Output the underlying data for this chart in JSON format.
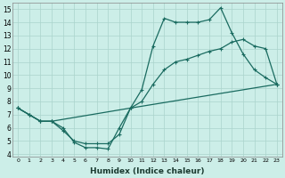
{
  "xlabel": "Humidex (Indice chaleur)",
  "bg_color": "#cceee8",
  "grid_color": "#aad4cc",
  "line_color": "#1a6b60",
  "xlim": [
    -0.5,
    23.5
  ],
  "ylim": [
    3.8,
    15.5
  ],
  "xticks": [
    0,
    1,
    2,
    3,
    4,
    5,
    6,
    7,
    8,
    9,
    10,
    11,
    12,
    13,
    14,
    15,
    16,
    17,
    18,
    19,
    20,
    21,
    22,
    23
  ],
  "yticks": [
    4,
    5,
    6,
    7,
    8,
    9,
    10,
    11,
    12,
    13,
    14,
    15
  ],
  "s1_x": [
    0,
    1,
    2,
    3,
    4,
    5,
    6,
    7,
    8,
    9,
    10,
    11,
    12,
    13,
    14,
    15,
    16,
    17,
    18,
    19,
    20,
    21,
    22,
    23
  ],
  "s1_y": [
    7.5,
    7.0,
    6.5,
    6.5,
    6.0,
    4.9,
    4.5,
    4.5,
    4.4,
    6.0,
    7.5,
    8.9,
    12.2,
    14.3,
    14.0,
    14.0,
    14.0,
    14.2,
    15.1,
    13.2,
    11.6,
    10.4,
    9.8,
    9.3
  ],
  "s2_x": [
    0,
    1,
    2,
    3,
    4,
    5,
    6,
    7,
    8,
    9,
    10,
    11,
    12,
    13,
    14,
    15,
    16,
    17,
    18,
    19,
    20,
    21,
    22,
    23
  ],
  "s2_y": [
    7.5,
    7.0,
    6.5,
    6.5,
    5.8,
    5.0,
    4.8,
    4.8,
    4.8,
    5.5,
    7.5,
    8.0,
    9.3,
    10.4,
    11.0,
    11.2,
    11.5,
    11.8,
    12.0,
    12.5,
    12.7,
    12.2,
    12.0,
    9.3
  ],
  "s3_x": [
    0,
    1,
    2,
    3,
    10,
    23
  ],
  "s3_y": [
    7.5,
    7.0,
    6.5,
    6.5,
    7.5,
    9.3
  ],
  "lw": 0.9,
  "ms": 2.5
}
